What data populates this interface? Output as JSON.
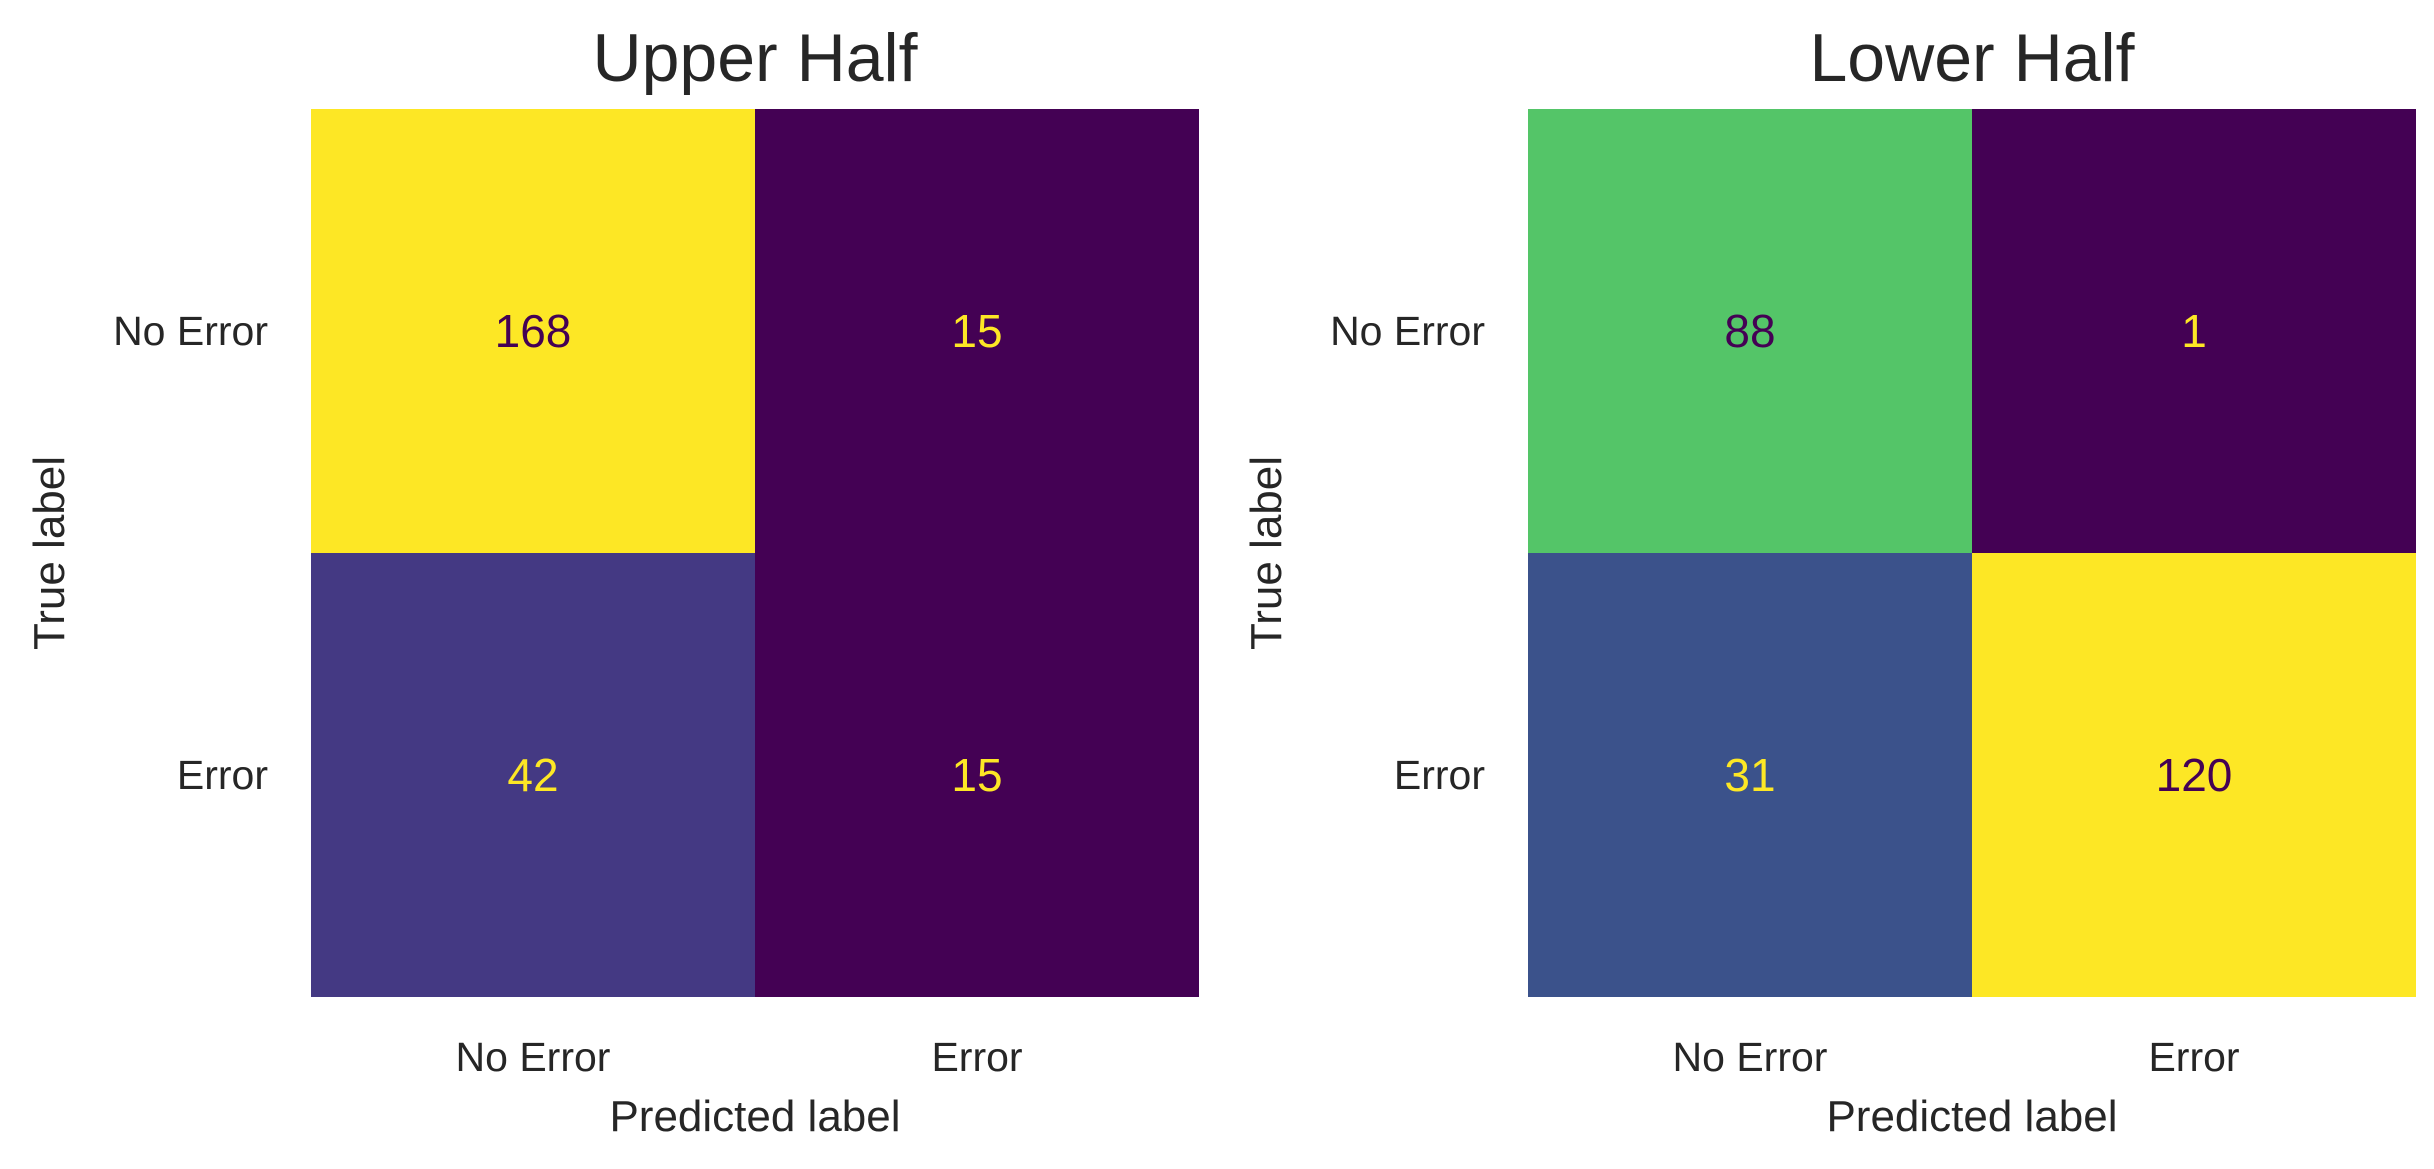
{
  "chart_data": [
    {
      "type": "heatmap",
      "title": "Upper Half",
      "xlabel": "Predicted label",
      "ylabel": "True label",
      "x_categories": [
        "No Error",
        "Error"
      ],
      "y_categories": [
        "No Error",
        "Error"
      ],
      "values": [
        [
          168,
          15
        ],
        [
          42,
          15
        ]
      ],
      "colormap": "viridis",
      "cell_colors": [
        [
          "#fde725",
          "#440154"
        ],
        [
          "#443983",
          "#440154"
        ]
      ],
      "text_colors": [
        [
          "#440154",
          "#fde725"
        ],
        [
          "#fde725",
          "#fde725"
        ]
      ]
    },
    {
      "type": "heatmap",
      "title": "Lower Half",
      "xlabel": "Predicted label",
      "ylabel": "True label",
      "x_categories": [
        "No Error",
        "Error"
      ],
      "y_categories": [
        "No Error",
        "Error"
      ],
      "values": [
        [
          88,
          1
        ],
        [
          31,
          120
        ]
      ],
      "colormap": "viridis",
      "cell_colors": [
        [
          "#54c568",
          "#440154"
        ],
        [
          "#3b528b",
          "#fde725"
        ]
      ],
      "text_colors": [
        [
          "#440154",
          "#fde725"
        ],
        [
          "#fde725",
          "#440154"
        ]
      ]
    }
  ]
}
